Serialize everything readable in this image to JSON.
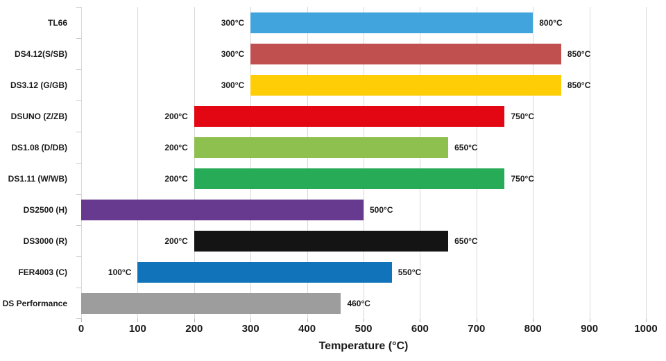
{
  "chart_data": {
    "type": "bar",
    "orientation": "horizontal",
    "title": "",
    "xlabel": "Temperature (°C)",
    "xlim": [
      0,
      1000
    ],
    "xticks": [
      0,
      100,
      200,
      300,
      400,
      500,
      600,
      700,
      800,
      900,
      1000
    ],
    "grid": true,
    "legend": false,
    "bars": [
      {
        "category": "TL66",
        "start": 300,
        "end": 800,
        "start_label": "300°C",
        "end_label": "800°C",
        "color": "#41A4DC"
      },
      {
        "category": "DS4.12(S/SB)",
        "start": 300,
        "end": 850,
        "start_label": "300°C",
        "end_label": "850°C",
        "color": "#C05050"
      },
      {
        "category": "DS3.12 (G/GB)",
        "start": 300,
        "end": 850,
        "start_label": "300°C",
        "end_label": "850°C",
        "color": "#FFCD05"
      },
      {
        "category": "DSUNO (Z/ZB)",
        "start": 200,
        "end": 750,
        "start_label": "200°C",
        "end_label": "750°C",
        "color": "#E30613"
      },
      {
        "category": "DS1.08 (D/DB)",
        "start": 200,
        "end": 650,
        "start_label": "200°C",
        "end_label": "650°C",
        "color": "#8EC050"
      },
      {
        "category": "DS1.11 (W/WB)",
        "start": 200,
        "end": 750,
        "start_label": "200°C",
        "end_label": "750°C",
        "color": "#27AB56"
      },
      {
        "category": "DS2500 (H)",
        "start": 0,
        "end": 500,
        "start_label": "",
        "end_label": "500°C",
        "color": "#67398F"
      },
      {
        "category": "DS3000 (R)",
        "start": 200,
        "end": 650,
        "start_label": "200°C",
        "end_label": "650°C",
        "color": "#141414"
      },
      {
        "category": "FER4003 (C)",
        "start": 100,
        "end": 550,
        "start_label": "100°C",
        "end_label": "550°C",
        "color": "#1173B9"
      },
      {
        "category": "DS Performance",
        "start": 0,
        "end": 460,
        "start_label": "",
        "end_label": "460°C",
        "color": "#9D9D9D"
      }
    ],
    "colors": {
      "gridline": "#d8d8d8",
      "tick": "#b5b5b5",
      "text": "#1a1a1a",
      "background": "#ffffff"
    }
  }
}
